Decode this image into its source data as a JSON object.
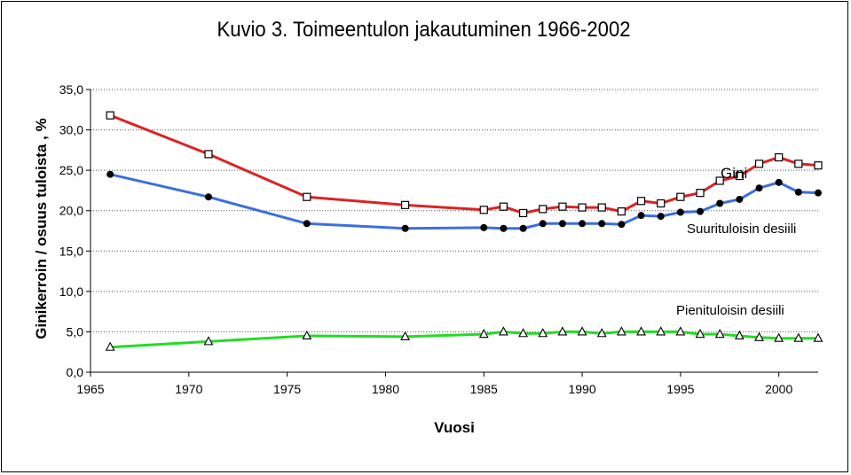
{
  "chart_data": {
    "type": "line",
    "title": "Kuvio 3. Toimeentulon jakautuminen 1966-2002",
    "xlabel": "Vuosi",
    "ylabel": "Ginikerroin / osuus tuloista , %",
    "xlim": [
      1965,
      2002
    ],
    "ylim": [
      0,
      35
    ],
    "x_ticks": [
      "1965",
      "1970",
      "1975",
      "1980",
      "1985",
      "1990",
      "1995",
      "2000"
    ],
    "y_ticks": [
      "0,0",
      "5,0",
      "10,0",
      "15,0",
      "20,0",
      "25,0",
      "30,0",
      "35,0"
    ],
    "grid": "horizontal dotted",
    "series": [
      {
        "name": "Gini",
        "color": "#dd2222",
        "marker": "square",
        "x": [
          1966,
          1971,
          1976,
          1981,
          1985,
          1986,
          1987,
          1988,
          1989,
          1990,
          1991,
          1992,
          1993,
          1994,
          1995,
          1996,
          1997,
          1998,
          1999,
          2000,
          2001,
          2002
        ],
        "values": [
          31.8,
          27.0,
          21.7,
          20.7,
          20.1,
          20.5,
          19.7,
          20.2,
          20.5,
          20.4,
          20.4,
          19.9,
          21.2,
          20.9,
          21.7,
          22.2,
          23.7,
          24.3,
          25.8,
          26.6,
          25.8,
          25.6
        ]
      },
      {
        "name": "Suurituloisin desiili",
        "color": "#3a6fe0",
        "marker": "circle",
        "x": [
          1966,
          1971,
          1976,
          1981,
          1985,
          1986,
          1987,
          1988,
          1989,
          1990,
          1991,
          1992,
          1993,
          1994,
          1995,
          1996,
          1997,
          1998,
          1999,
          2000,
          2001,
          2002
        ],
        "values": [
          24.5,
          21.7,
          18.4,
          17.8,
          17.9,
          17.8,
          17.8,
          18.4,
          18.4,
          18.4,
          18.4,
          18.3,
          19.4,
          19.3,
          19.8,
          19.9,
          20.9,
          21.4,
          22.8,
          23.5,
          22.3,
          22.2
        ]
      },
      {
        "name": "Pienituloisin desiili",
        "color": "#22dd22",
        "marker": "triangle",
        "x": [
          1966,
          1971,
          1976,
          1981,
          1985,
          1986,
          1987,
          1988,
          1989,
          1990,
          1991,
          1992,
          1993,
          1994,
          1995,
          1996,
          1997,
          1998,
          1999,
          2000,
          2001,
          2002
        ],
        "values": [
          3.1,
          3.8,
          4.5,
          4.4,
          4.7,
          5.0,
          4.8,
          4.8,
          5.0,
          5.0,
          4.8,
          5.0,
          5.0,
          5.0,
          5.0,
          4.7,
          4.7,
          4.5,
          4.3,
          4.2,
          4.2,
          4.2
        ]
      }
    ]
  }
}
